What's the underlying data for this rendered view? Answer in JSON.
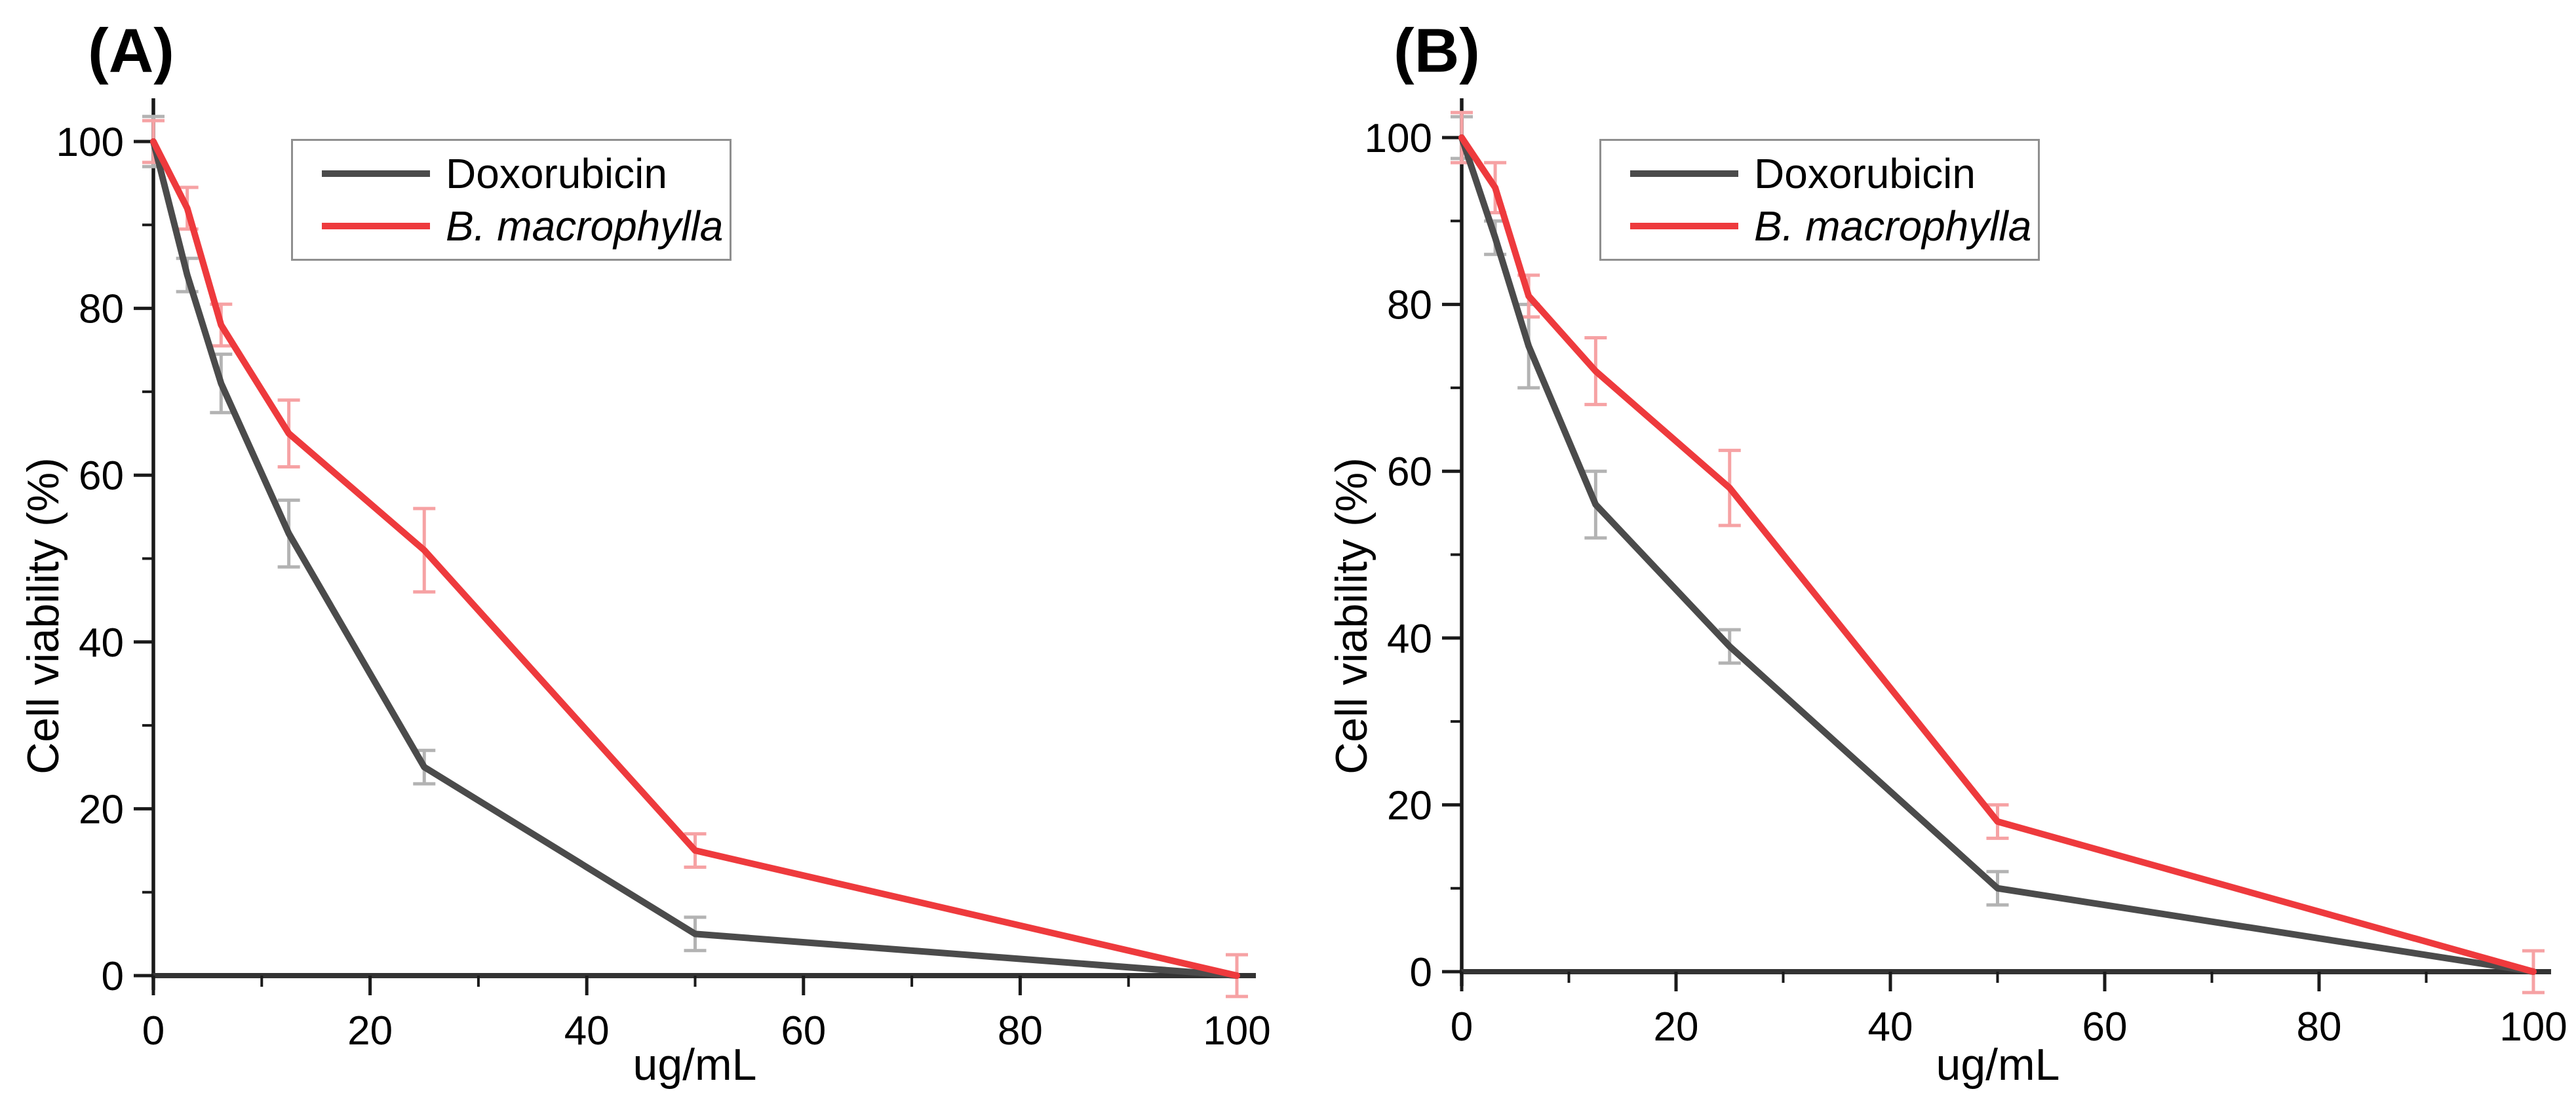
{
  "figure": {
    "background": "#ffffff"
  },
  "axis_color": "#1a1a1a",
  "x_axis_color": "#333333",
  "chart_data": [
    {
      "type": "line",
      "panel_label": "(A)",
      "xlabel": "ug/mL",
      "ylabel": "Cell viability (%)",
      "x": [
        0,
        3.125,
        6.25,
        12.5,
        25,
        50,
        100
      ],
      "series": [
        {
          "name": "Doxorubicin",
          "color": "#4b4b4b",
          "error_color": "#b3b3b3",
          "italic": false,
          "values": [
            100,
            84,
            71,
            53,
            25,
            5,
            0
          ],
          "errors": [
            3,
            2,
            3.5,
            4,
            2,
            2,
            0
          ]
        },
        {
          "name": "B. macrophylla",
          "color": "#ee3a3d",
          "error_color": "#f6a2a4",
          "italic": true,
          "values": [
            100,
            92,
            78,
            65,
            51,
            15,
            0
          ],
          "errors": [
            2.5,
            2.5,
            2.5,
            4,
            5,
            2,
            2.5
          ]
        }
      ],
      "xlim": [
        0,
        100
      ],
      "ylim": [
        0,
        105
      ],
      "xticks": [
        0,
        20,
        40,
        60,
        80,
        100
      ],
      "yticks": [
        0,
        20,
        40,
        60,
        80,
        100
      ],
      "x_minor_ticks": [
        10,
        30,
        50,
        70,
        90
      ],
      "y_minor_ticks": [
        10,
        30,
        50,
        70,
        90
      ],
      "grid": false,
      "legend_position": "upper-left-inside"
    },
    {
      "type": "line",
      "panel_label": "(B)",
      "xlabel": "ug/mL",
      "ylabel": "Cell viability (%)",
      "x": [
        0,
        3.125,
        6.25,
        12.5,
        25,
        50,
        100
      ],
      "series": [
        {
          "name": "Doxorubicin",
          "color": "#4b4b4b",
          "error_color": "#b3b3b3",
          "italic": false,
          "values": [
            100,
            88,
            75,
            56,
            39,
            10,
            0
          ],
          "errors": [
            2.5,
            2,
            5,
            4,
            2,
            2,
            0
          ]
        },
        {
          "name": "B. macrophylla",
          "color": "#ee3a3d",
          "error_color": "#f6a2a4",
          "italic": true,
          "values": [
            100,
            94,
            81,
            72,
            58,
            18,
            0
          ],
          "errors": [
            3,
            3,
            2.5,
            4,
            4.5,
            2,
            2.5
          ]
        }
      ],
      "xlim": [
        0,
        100
      ],
      "ylim": [
        0,
        105
      ],
      "xticks": [
        0,
        20,
        40,
        60,
        80,
        100
      ],
      "yticks": [
        0,
        20,
        40,
        60,
        80,
        100
      ],
      "x_minor_ticks": [
        10,
        30,
        50,
        70,
        90
      ],
      "y_minor_ticks": [
        10,
        30,
        50,
        70,
        90
      ],
      "grid": false,
      "legend_position": "upper-left-inside"
    }
  ]
}
